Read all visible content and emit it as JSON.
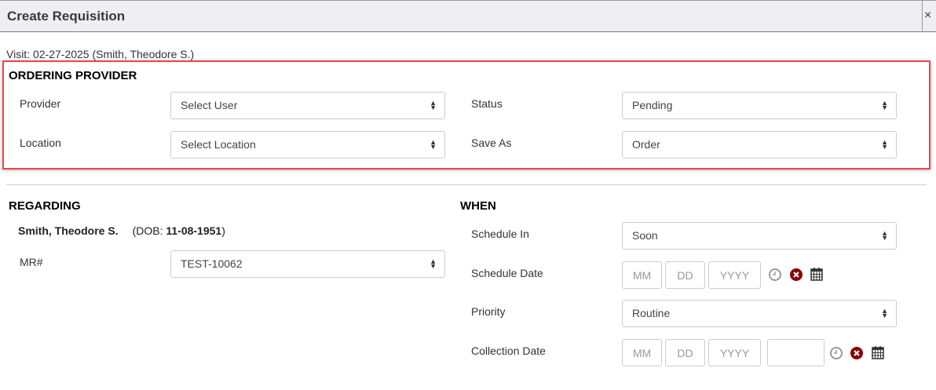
{
  "header": {
    "title": "Create Requisition",
    "close": "×"
  },
  "visit": "Visit: 02-27-2025 (Smith, Theodore S.)",
  "ordering_provider": {
    "title": "ORDERING PROVIDER",
    "provider_label": "Provider",
    "provider_value": "Select User",
    "location_label": "Location",
    "location_value": "Select Location",
    "status_label": "Status",
    "status_value": "Pending",
    "save_as_label": "Save As",
    "save_as_value": "Order"
  },
  "regarding": {
    "title": "REGARDING",
    "patient_name": "Smith, Theodore S.",
    "dob_prefix": "(DOB: ",
    "dob": "11-08-1951",
    "dob_suffix": ")",
    "mr_label": "MR#",
    "mr_value": "TEST-10062"
  },
  "when": {
    "title": "WHEN",
    "schedule_in_label": "Schedule In",
    "schedule_in_value": "Soon",
    "schedule_date_label": "Schedule Date",
    "priority_label": "Priority",
    "priority_value": "Routine",
    "collection_date_label": "Collection Date",
    "mm": "MM",
    "dd": "DD",
    "yyyy": "YYYY"
  },
  "colors": {
    "highlight": "#f04448",
    "clear_icon": "#8b0000"
  }
}
